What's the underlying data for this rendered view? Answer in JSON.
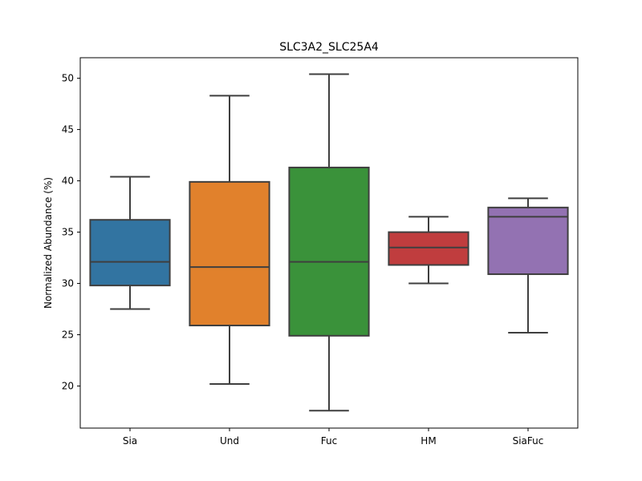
{
  "chart_data": {
    "type": "box",
    "title": "SLC3A2_SLC25A4",
    "xlabel": "",
    "ylabel": "Normalized Abundance (%)",
    "ylim": [
      15.9,
      52.0
    ],
    "yticks": [
      20,
      25,
      30,
      35,
      40,
      45,
      50
    ],
    "grid": false,
    "categories": [
      "Sia",
      "Und",
      "Fuc",
      "HM",
      "SiaFuc"
    ],
    "boxes": [
      {
        "category": "Sia",
        "whisker_low": 27.5,
        "q1": 29.8,
        "median": 32.1,
        "q3": 36.2,
        "whisker_high": 40.4,
        "color": "#3274a1"
      },
      {
        "category": "Und",
        "whisker_low": 20.2,
        "q1": 25.9,
        "median": 31.6,
        "q3": 39.9,
        "whisker_high": 48.3,
        "color": "#e1812c"
      },
      {
        "category": "Fuc",
        "whisker_low": 17.6,
        "q1": 24.9,
        "median": 32.1,
        "q3": 41.3,
        "whisker_high": 50.4,
        "color": "#3a923a"
      },
      {
        "category": "HM",
        "whisker_low": 30.0,
        "q1": 31.8,
        "median": 33.5,
        "q3": 35.0,
        "whisker_high": 36.5,
        "color": "#c03d3e"
      },
      {
        "category": "SiaFuc",
        "whisker_low": 25.2,
        "q1": 30.9,
        "median": 36.5,
        "q3": 37.4,
        "whisker_high": 38.3,
        "color": "#9372b2"
      }
    ]
  }
}
